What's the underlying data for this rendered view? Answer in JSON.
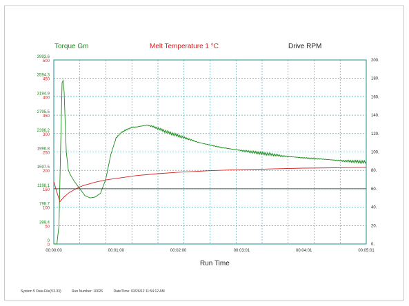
{
  "chart_data": {
    "type": "line",
    "title": "",
    "xlabel": "Run Time",
    "x_ticks": [
      "00:00:00",
      "00:01:00",
      "00:02:00",
      "00:03:01",
      "00:04:01",
      "00:05:01"
    ],
    "x_range_seconds": [
      0,
      301
    ],
    "left_axis_torque": {
      "label": "Torque Gm",
      "ticks": [
        "0",
        "399.4",
        "798.7",
        "1198.1",
        "1597.5",
        "1996.8",
        "2396.2",
        "2795.5",
        "3194.9",
        "3594.3",
        "3993.6"
      ],
      "range": [
        0,
        3993.6
      ],
      "color": "#1a8a1a"
    },
    "left_axis_temperature": {
      "label": "Melt Temperature 1 °C",
      "ticks": [
        "0",
        "50",
        "100",
        "150",
        "200",
        "250",
        "300",
        "350",
        "400",
        "450",
        "500"
      ],
      "range": [
        0,
        500
      ],
      "color": "#d42020"
    },
    "right_axis_rpm": {
      "label": "Drive RPM",
      "ticks": [
        "0",
        "20",
        "40",
        "60",
        "80",
        "100",
        "120",
        "140",
        "160",
        "180",
        "200"
      ],
      "range": [
        0,
        200
      ],
      "color": "#222222"
    },
    "grid": true,
    "series": [
      {
        "name": "Torque Gm",
        "axis": "torque",
        "color": "#1a8a1a",
        "x": [
          0,
          3,
          5,
          7,
          8,
          9,
          10,
          11,
          12,
          14,
          16,
          20,
          25,
          30,
          35,
          40,
          45,
          50,
          55,
          60,
          65,
          70,
          75,
          80,
          85,
          90,
          95,
          100,
          110,
          120,
          140,
          160,
          180,
          200,
          220,
          240,
          260,
          280,
          301
        ],
        "y": [
          0,
          0,
          400,
          2500,
          3500,
          3550,
          3300,
          2600,
          2000,
          1600,
          1500,
          1350,
          1200,
          1050,
          1000,
          1020,
          1100,
          1400,
          1950,
          2300,
          2420,
          2480,
          2530,
          2540,
          2560,
          2580,
          2550,
          2510,
          2420,
          2350,
          2200,
          2100,
          2030,
          1970,
          1910,
          1870,
          1840,
          1800,
          1780
        ]
      },
      {
        "name": "Melt Temperature 1 °C",
        "axis": "temperature",
        "color": "#d42020",
        "x": [
          0,
          3,
          6,
          10,
          15,
          20,
          25,
          30,
          40,
          50,
          60,
          80,
          100,
          120,
          150,
          180,
          210,
          240,
          270,
          301
        ],
        "y": [
          170,
          140,
          115,
          128,
          140,
          148,
          155,
          160,
          168,
          174,
          178,
          186,
          191,
          195,
          199,
          202,
          204,
          206,
          207,
          208
        ]
      },
      {
        "name": "Drive RPM",
        "axis": "rpm",
        "color": "#222222",
        "x": [
          0,
          301
        ],
        "y": [
          60,
          60
        ]
      }
    ]
  },
  "footer": {
    "file": "System 5 Data File(V3.33)",
    "run": "Run Number: 10026",
    "date": "Date/Time:  03/26/12 11:54:12 AM"
  }
}
